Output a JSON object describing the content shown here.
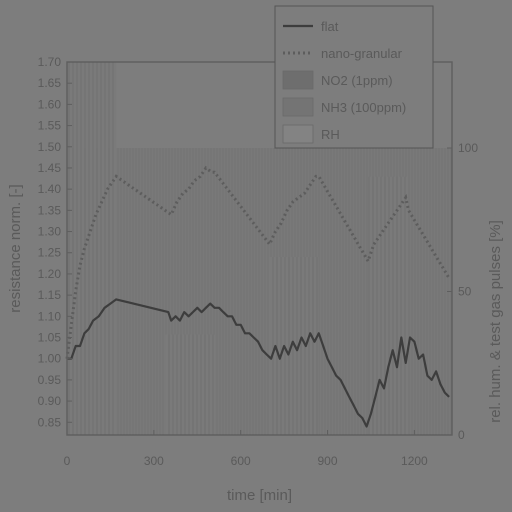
{
  "chart_data": {
    "type": "line",
    "xlabel": "time [min]",
    "ylabel": "resistance norm. [-]",
    "y2label": "rel. hum. & test gas pulses [%]",
    "xlim": [
      0,
      1330
    ],
    "ylim": [
      0.82,
      1.7
    ],
    "y2lim": [
      0,
      100
    ],
    "xticks": [
      0,
      300,
      600,
      900,
      1200
    ],
    "yticks": [
      0.85,
      0.9,
      0.95,
      1.0,
      1.05,
      1.1,
      1.15,
      1.2,
      1.25,
      1.3,
      1.35,
      1.4,
      1.45,
      1.5,
      1.55,
      1.6,
      1.65,
      1.7
    ],
    "y2ticks": [
      0,
      50,
      100
    ],
    "legend_position": "top-right",
    "colors": {
      "background": "#7d7d7d",
      "axis": "#5e5e5e",
      "text": "#5a5a5a",
      "flat": "#3d3d3d",
      "nano": "#5d5d5d",
      "no2": "#6e6e6e",
      "nh3": "#747474",
      "rh": "#838383"
    },
    "series": [
      {
        "name": "flat",
        "style": "solid",
        "x": [
          0,
          15,
          30,
          45,
          60,
          75,
          90,
          110,
          130,
          150,
          170,
          350,
          360,
          375,
          390,
          405,
          420,
          435,
          450,
          465,
          480,
          495,
          510,
          525,
          540,
          555,
          570,
          585,
          600,
          615,
          630,
          645,
          660,
          675,
          690,
          705,
          720,
          735,
          750,
          765,
          780,
          795,
          810,
          825,
          840,
          855,
          870,
          885,
          900,
          915,
          930,
          945,
          960,
          975,
          990,
          1005,
          1020,
          1035,
          1050,
          1065,
          1080,
          1095,
          1110,
          1125,
          1140,
          1155,
          1170,
          1185,
          1200,
          1215,
          1230,
          1245,
          1260,
          1275,
          1290,
          1305,
          1320
        ],
        "y": [
          1.0,
          1.0,
          1.03,
          1.03,
          1.06,
          1.07,
          1.09,
          1.1,
          1.12,
          1.13,
          1.14,
          1.11,
          1.09,
          1.1,
          1.09,
          1.11,
          1.1,
          1.11,
          1.12,
          1.11,
          1.12,
          1.13,
          1.12,
          1.12,
          1.11,
          1.1,
          1.1,
          1.08,
          1.08,
          1.06,
          1.06,
          1.05,
          1.04,
          1.02,
          1.01,
          1.0,
          1.03,
          1.0,
          1.03,
          1.01,
          1.04,
          1.02,
          1.05,
          1.03,
          1.06,
          1.04,
          1.06,
          1.03,
          1.0,
          0.98,
          0.96,
          0.95,
          0.93,
          0.91,
          0.89,
          0.87,
          0.86,
          0.84,
          0.87,
          0.91,
          0.95,
          0.93,
          0.98,
          1.02,
          0.98,
          1.05,
          0.99,
          1.05,
          1.04,
          1.0,
          1.01,
          0.96,
          0.95,
          0.97,
          0.94,
          0.92,
          0.91
        ]
      },
      {
        "name": "nano-granular",
        "style": "dotted",
        "x": [
          0,
          15,
          30,
          45,
          60,
          80,
          100,
          120,
          140,
          160,
          170,
          360,
          380,
          400,
          420,
          440,
          460,
          480,
          500,
          510,
          700,
          720,
          740,
          760,
          780,
          800,
          820,
          840,
          860,
          870,
          1040,
          1060,
          1080,
          1100,
          1120,
          1140,
          1160,
          1170,
          1180,
          1320
        ],
        "y": [
          1.0,
          1.08,
          1.16,
          1.22,
          1.26,
          1.3,
          1.34,
          1.37,
          1.4,
          1.42,
          1.43,
          1.34,
          1.37,
          1.39,
          1.4,
          1.42,
          1.43,
          1.45,
          1.44,
          1.44,
          1.27,
          1.3,
          1.32,
          1.35,
          1.37,
          1.38,
          1.39,
          1.41,
          1.43,
          1.43,
          1.23,
          1.27,
          1.29,
          1.31,
          1.33,
          1.35,
          1.37,
          1.38,
          1.35,
          1.19
        ]
      }
    ],
    "background_pulses": [
      {
        "name": "NO2 (1ppm)",
        "x_start": 0,
        "x_end": 170,
        "y2_top": 130
      },
      {
        "name": "NH3 (100ppm)",
        "x_start": 340,
        "x_end": 510,
        "y2_top": 35
      },
      {
        "name": "NH3 (100ppm)",
        "x_start": 700,
        "x_end": 870,
        "y2_top": 62
      },
      {
        "name": "NH3 (100ppm)",
        "x_start": 1040,
        "x_end": 1180,
        "y2_top": 90
      }
    ],
    "rh_steps": [
      {
        "x_start": 0,
        "x_end": 1330,
        "y2": 100
      }
    ]
  },
  "legend": {
    "items": [
      {
        "label": "flat",
        "kind": "line-solid"
      },
      {
        "label": "nano-granular",
        "kind": "line-dotted"
      },
      {
        "label": "NO2 (1ppm)",
        "kind": "fill-no2"
      },
      {
        "label": "NH3 (100ppm)",
        "kind": "fill-nh3"
      },
      {
        "label": "RH",
        "kind": "fill-rh"
      }
    ]
  }
}
